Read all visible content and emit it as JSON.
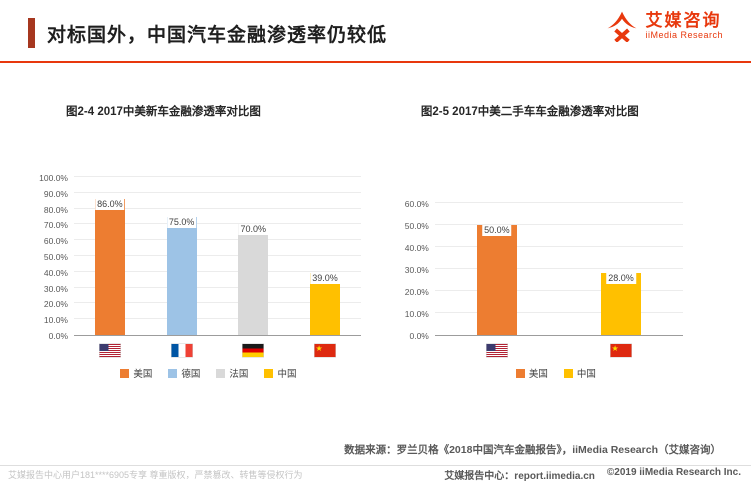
{
  "header": {
    "title": "对标国外，中国汽车金融渗透率仍较低",
    "logo": {
      "cn": "艾媒咨询",
      "en": "iiMedia Research"
    }
  },
  "chart_data": [
    {
      "type": "bar",
      "title": "图2-4 2017中美新车金融渗透率对比图",
      "categories": [
        "美国",
        "德国",
        "法国",
        "中国"
      ],
      "values": [
        86.0,
        75.0,
        70.0,
        39.0
      ],
      "data_labels": [
        "86.0%",
        "75.0%",
        "70.0%",
        "39.0%"
      ],
      "bar_colors": [
        "#ED7D31",
        "#9DC3E6",
        "#D9D9D9",
        "#FFC000"
      ],
      "flags": [
        "us",
        "fr",
        "de",
        "cn"
      ],
      "legend": [
        {
          "label": "美国",
          "color": "#ED7D31"
        },
        {
          "label": "德国",
          "color": "#9DC3E6"
        },
        {
          "label": "法国",
          "color": "#D9D9D9"
        },
        {
          "label": "中国",
          "color": "#FFC000"
        }
      ],
      "ylim": [
        0,
        100
      ],
      "ytick_step": 10,
      "ytick_format": "0.0%",
      "grid": true,
      "legend_position": "bottom"
    },
    {
      "type": "bar",
      "title": "图2-5 2017中美二手车车金融渗透率对比图",
      "categories": [
        "美国",
        "中国"
      ],
      "values": [
        50.0,
        28.0
      ],
      "data_labels": [
        "50.0%",
        "28.0%"
      ],
      "bar_colors": [
        "#ED7D31",
        "#FFC000"
      ],
      "flags": [
        "us",
        "cn"
      ],
      "legend": [
        {
          "label": "美国",
          "color": "#ED7D31"
        },
        {
          "label": "中国",
          "color": "#FFC000"
        }
      ],
      "ylim": [
        0,
        60
      ],
      "ytick_step": 10,
      "ytick_format": "0.0%",
      "grid": true,
      "legend_position": "bottom"
    }
  ],
  "source": "数据来源：罗兰贝格《2018中国汽车金融报告》，iiMedia Research（艾媒咨询）",
  "footer": {
    "watermark": "艾媒报告中心用户181****6905专享 尊重版权，严禁篡改、转售等侵权行为",
    "site": "艾媒报告中心：report.iimedia.cn",
    "copyright": "©2019 iiMedia Research Inc."
  }
}
